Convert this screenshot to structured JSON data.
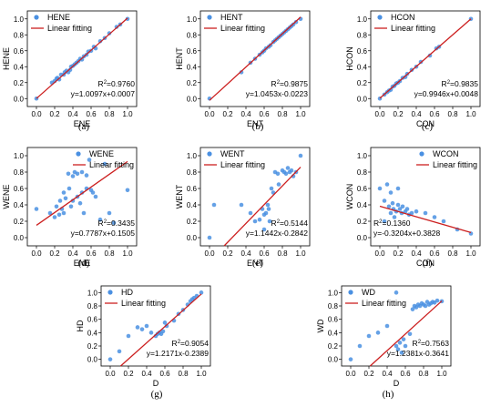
{
  "chart_data": [
    {
      "type": "scatter",
      "panel_label": "(a)",
      "xlabel": "ENE",
      "ylabel": "HENE",
      "xlim": [
        -0.1,
        1.1
      ],
      "ylim": [
        -0.1,
        1.1
      ],
      "xticks": [
        0.0,
        0.2,
        0.4,
        0.6,
        0.8,
        1.0
      ],
      "yticks": [
        0.0,
        0.2,
        0.4,
        0.6,
        0.8,
        1.0
      ],
      "tick_labels_x": [
        "0.0",
        "0.2",
        "0.4",
        "0.6",
        "0.8",
        "1.0"
      ],
      "tick_labels_y": [
        "0.0",
        "0.2",
        "0.4",
        "0.6",
        "0.8",
        "1.0"
      ],
      "legend": [
        "HENE",
        "Linear fitting"
      ],
      "legend_position": "top-left",
      "r2_text": "0.9760",
      "eq_text": "y=1.0097x+0.0007",
      "fit": {
        "slope": 1.0097,
        "intercept": 0.0007
      },
      "points": [
        [
          0,
          0
        ],
        [
          0.17,
          0.2
        ],
        [
          0.2,
          0.22
        ],
        [
          0.22,
          0.25
        ],
        [
          0.23,
          0.26
        ],
        [
          0.25,
          0.24
        ],
        [
          0.27,
          0.3
        ],
        [
          0.3,
          0.3
        ],
        [
          0.31,
          0.33
        ],
        [
          0.33,
          0.35
        ],
        [
          0.35,
          0.33
        ],
        [
          0.37,
          0.36
        ],
        [
          0.38,
          0.4
        ],
        [
          0.4,
          0.41
        ],
        [
          0.42,
          0.43
        ],
        [
          0.44,
          0.45
        ],
        [
          0.46,
          0.47
        ],
        [
          0.48,
          0.5
        ],
        [
          0.5,
          0.49
        ],
        [
          0.52,
          0.53
        ],
        [
          0.55,
          0.55
        ],
        [
          0.57,
          0.59
        ],
        [
          0.6,
          0.6
        ],
        [
          0.63,
          0.65
        ],
        [
          0.65,
          0.63
        ],
        [
          0.7,
          0.72
        ],
        [
          0.75,
          0.76
        ],
        [
          0.8,
          0.82
        ],
        [
          0.88,
          0.9
        ],
        [
          0.92,
          0.93
        ],
        [
          1.0,
          1.0
        ]
      ]
    },
    {
      "type": "scatter",
      "panel_label": "(b)",
      "xlabel": "ENT",
      "ylabel": "HENT",
      "xlim": [
        -0.1,
        1.1
      ],
      "ylim": [
        -0.1,
        1.1
      ],
      "xticks": [
        0.0,
        0.2,
        0.4,
        0.6,
        0.8,
        1.0
      ],
      "yticks": [
        0.0,
        0.2,
        0.4,
        0.6,
        0.8,
        1.0
      ],
      "tick_labels_x": [
        "0.0",
        "0.2",
        "0.4",
        "0.6",
        "0.8",
        "1.0"
      ],
      "tick_labels_y": [
        "0.0",
        "0.2",
        "0.4",
        "0.6",
        "0.8",
        "1.0"
      ],
      "legend": [
        "HENT",
        "Linear fitting"
      ],
      "legend_position": "top-left",
      "r2_text": "0.9875",
      "eq_text": "y=1.0453x-0.0223",
      "fit": {
        "slope": 1.0453,
        "intercept": -0.0223
      },
      "points": [
        [
          0,
          0
        ],
        [
          0.35,
          0.33
        ],
        [
          0.45,
          0.45
        ],
        [
          0.5,
          0.5
        ],
        [
          0.55,
          0.55
        ],
        [
          0.58,
          0.58
        ],
        [
          0.6,
          0.6
        ],
        [
          0.62,
          0.63
        ],
        [
          0.65,
          0.65
        ],
        [
          0.67,
          0.67
        ],
        [
          0.7,
          0.71
        ],
        [
          0.72,
          0.73
        ],
        [
          0.74,
          0.75
        ],
        [
          0.76,
          0.77
        ],
        [
          0.78,
          0.79
        ],
        [
          0.8,
          0.81
        ],
        [
          0.82,
          0.83
        ],
        [
          0.84,
          0.85
        ],
        [
          0.86,
          0.87
        ],
        [
          0.88,
          0.89
        ],
        [
          0.9,
          0.91
        ],
        [
          0.92,
          0.93
        ],
        [
          0.95,
          0.96
        ],
        [
          1.0,
          1.0
        ]
      ]
    },
    {
      "type": "scatter",
      "panel_label": "(c)",
      "xlabel": "CON",
      "ylabel": "HCON",
      "xlim": [
        -0.1,
        1.1
      ],
      "ylim": [
        -0.1,
        1.1
      ],
      "xticks": [
        0.0,
        0.2,
        0.4,
        0.6,
        0.8,
        1.0
      ],
      "yticks": [
        0.0,
        0.2,
        0.4,
        0.6,
        0.8,
        1.0
      ],
      "tick_labels_x": [
        "0.0",
        "0.2",
        "0.4",
        "0.6",
        "0.8",
        "1.0"
      ],
      "tick_labels_y": [
        "0.0",
        "0.2",
        "0.4",
        "0.6",
        "0.8",
        "1.0"
      ],
      "legend": [
        "HCON",
        "Linear fitting"
      ],
      "legend_position": "top-left",
      "r2_text": "0.9835",
      "eq_text": "y=0.9946x+0.0048",
      "fit": {
        "slope": 0.9946,
        "intercept": 0.0048
      },
      "points": [
        [
          0,
          0
        ],
        [
          0.05,
          0.05
        ],
        [
          0.08,
          0.08
        ],
        [
          0.1,
          0.1
        ],
        [
          0.12,
          0.11
        ],
        [
          0.14,
          0.15
        ],
        [
          0.16,
          0.16
        ],
        [
          0.18,
          0.19
        ],
        [
          0.2,
          0.2
        ],
        [
          0.22,
          0.22
        ],
        [
          0.25,
          0.26
        ],
        [
          0.28,
          0.27
        ],
        [
          0.3,
          0.31
        ],
        [
          0.35,
          0.36
        ],
        [
          0.4,
          0.4
        ],
        [
          0.45,
          0.46
        ],
        [
          0.55,
          0.54
        ],
        [
          0.62,
          0.63
        ],
        [
          0.65,
          0.65
        ],
        [
          1.0,
          1.0
        ]
      ]
    },
    {
      "type": "scatter",
      "panel_label": "(d)",
      "xlabel": "ENE",
      "ylabel": "WENE",
      "xlim": [
        -0.1,
        1.1
      ],
      "ylim": [
        -0.1,
        1.1
      ],
      "xticks": [
        0.0,
        0.2,
        0.4,
        0.6,
        0.8,
        1.0
      ],
      "yticks": [
        0.0,
        0.2,
        0.4,
        0.6,
        0.8,
        1.0
      ],
      "tick_labels_x": [
        "0.0",
        "0.2",
        "0.4",
        "0.6",
        "0.8",
        "1.0"
      ],
      "tick_labels_y": [
        "0.0",
        "0.2",
        "0.4",
        "0.6",
        "0.8",
        "1.0"
      ],
      "legend": [
        "WENE",
        "Linear fitting"
      ],
      "legend_position": "top-right",
      "r2_text": "0.3435",
      "eq_text": "y=0.7787x+0.1505",
      "fit": {
        "slope": 0.7787,
        "intercept": 0.1505
      },
      "points": [
        [
          0,
          0.35
        ],
        [
          0.15,
          0.3
        ],
        [
          0.2,
          0.25
        ],
        [
          0.22,
          0.38
        ],
        [
          0.25,
          0.28
        ],
        [
          0.26,
          0.45
        ],
        [
          0.28,
          0.35
        ],
        [
          0.3,
          0.3
        ],
        [
          0.3,
          0.55
        ],
        [
          0.32,
          0.48
        ],
        [
          0.35,
          0.78
        ],
        [
          0.36,
          0.6
        ],
        [
          0.38,
          0.38
        ],
        [
          0.4,
          0.45
        ],
        [
          0.4,
          0.75
        ],
        [
          0.42,
          0.8
        ],
        [
          0.45,
          0.5
        ],
        [
          0.45,
          0.78
        ],
        [
          0.48,
          0.42
        ],
        [
          0.5,
          0.8
        ],
        [
          0.5,
          0.55
        ],
        [
          0.52,
          0.3
        ],
        [
          0.55,
          0.76
        ],
        [
          0.55,
          0.6
        ],
        [
          0.58,
          0.95
        ],
        [
          0.6,
          0.58
        ],
        [
          0.62,
          0.55
        ],
        [
          0.65,
          0.5
        ],
        [
          0.7,
          0.22
        ],
        [
          0.75,
          0.9
        ],
        [
          0.8,
          0.3
        ],
        [
          0.85,
          0.18
        ],
        [
          1.0,
          0.58
        ]
      ]
    },
    {
      "type": "scatter",
      "panel_label": "(e)",
      "xlabel": "ENT",
      "ylabel": "WENT",
      "xlim": [
        -0.1,
        1.1
      ],
      "ylim": [
        -0.1,
        1.1
      ],
      "xticks": [
        0.0,
        0.2,
        0.4,
        0.6,
        0.8,
        1.0
      ],
      "yticks": [
        0.0,
        0.2,
        0.4,
        0.6,
        0.8,
        1.0
      ],
      "tick_labels_x": [
        "0.0",
        "0.2",
        "0.4",
        "0.6",
        "0.8",
        "1.0"
      ],
      "tick_labels_y": [
        "0.0",
        "0.2",
        "0.4",
        "0.6",
        "0.8",
        "1.0"
      ],
      "legend": [
        "WENT",
        "Linear fitting"
      ],
      "legend_position": "top-left",
      "r2_text": "0.5144",
      "eq_text": "y=1.1442x-0.2842",
      "fit": {
        "slope": 1.1442,
        "intercept": -0.2842
      },
      "points": [
        [
          0,
          0
        ],
        [
          0.05,
          0.4
        ],
        [
          0.35,
          0.4
        ],
        [
          0.45,
          0.3
        ],
        [
          0.5,
          0.2
        ],
        [
          0.55,
          0.22
        ],
        [
          0.58,
          0.35
        ],
        [
          0.6,
          0.28
        ],
        [
          0.6,
          0.1
        ],
        [
          0.62,
          0.3
        ],
        [
          0.64,
          0.4
        ],
        [
          0.65,
          0.35
        ],
        [
          0.66,
          0.2
        ],
        [
          0.68,
          0.6
        ],
        [
          0.7,
          0.55
        ],
        [
          0.72,
          0.8
        ],
        [
          0.75,
          0.78
        ],
        [
          0.76,
          0.65
        ],
        [
          0.8,
          0.82
        ],
        [
          0.82,
          0.8
        ],
        [
          0.84,
          0.78
        ],
        [
          0.86,
          0.85
        ],
        [
          0.88,
          0.8
        ],
        [
          0.9,
          0.82
        ],
        [
          0.92,
          0.75
        ],
        [
          0.95,
          0.8
        ],
        [
          1.0,
          1.0
        ]
      ]
    },
    {
      "type": "scatter",
      "panel_label": "(f)",
      "xlabel": "CON",
      "ylabel": "WCON",
      "xlim": [
        -0.1,
        1.1
      ],
      "ylim": [
        -0.1,
        1.1
      ],
      "xticks": [
        0.0,
        0.2,
        0.4,
        0.6,
        0.8,
        1.0
      ],
      "yticks": [
        0.0,
        0.2,
        0.4,
        0.6,
        0.8,
        1.0
      ],
      "tick_labels_x": [
        "0.0",
        "0.2",
        "0.4",
        "0.6",
        "0.8",
        "1.0"
      ],
      "tick_labels_y": [
        "0.0",
        "0.2",
        "0.4",
        "0.6",
        "0.8",
        "1.0"
      ],
      "legend": [
        "WCON",
        "Linear fitting"
      ],
      "legend_position": "top-right",
      "r2_text": "0.1360",
      "eq_text": "y=-0.3204x+0.3828",
      "fit": {
        "slope": -0.3204,
        "intercept": 0.3828
      },
      "points": [
        [
          0,
          0.6
        ],
        [
          0.05,
          0.2
        ],
        [
          0.05,
          0.45
        ],
        [
          0.08,
          0.65
        ],
        [
          0.1,
          0.38
        ],
        [
          0.12,
          0.3
        ],
        [
          0.12,
          0.55
        ],
        [
          0.14,
          0.42
        ],
        [
          0.15,
          0.35
        ],
        [
          0.16,
          0.25
        ],
        [
          0.18,
          0.32
        ],
        [
          0.2,
          0.4
        ],
        [
          0.2,
          0.6
        ],
        [
          0.22,
          0.35
        ],
        [
          0.24,
          0.3
        ],
        [
          0.25,
          0.38
        ],
        [
          0.28,
          0.32
        ],
        [
          0.3,
          0.35
        ],
        [
          0.32,
          0.28
        ],
        [
          0.35,
          0.3
        ],
        [
          0.4,
          0.32
        ],
        [
          0.5,
          0.3
        ],
        [
          0.6,
          0.25
        ],
        [
          0.7,
          0.2
        ],
        [
          0.85,
          0.1
        ],
        [
          1.0,
          0.05
        ]
      ]
    },
    {
      "type": "scatter",
      "panel_label": "(g)",
      "xlabel": "D",
      "ylabel": "HD",
      "xlim": [
        -0.1,
        1.1
      ],
      "ylim": [
        -0.1,
        1.1
      ],
      "xticks": [
        0.0,
        0.2,
        0.4,
        0.6,
        0.8,
        1.0
      ],
      "yticks": [
        0.0,
        0.2,
        0.4,
        0.6,
        0.8,
        1.0
      ],
      "tick_labels_x": [
        "0.0",
        "0.2",
        "0.4",
        "0.6",
        "0.8",
        "1.0"
      ],
      "tick_labels_y": [
        "0.0",
        "0.2",
        "0.4",
        "0.6",
        "0.8",
        "1.0"
      ],
      "legend": [
        "HD",
        "Linear fitting"
      ],
      "legend_position": "top-left",
      "r2_text": "0.9054",
      "eq_text": "y=1.2171x-0.2389",
      "fit": {
        "slope": 1.2171,
        "intercept": -0.2389
      },
      "points": [
        [
          0,
          0
        ],
        [
          0.1,
          0.12
        ],
        [
          0.2,
          0.35
        ],
        [
          0.3,
          0.48
        ],
        [
          0.35,
          0.45
        ],
        [
          0.4,
          0.5
        ],
        [
          0.45,
          0.4
        ],
        [
          0.5,
          0.35
        ],
        [
          0.52,
          0.38
        ],
        [
          0.54,
          0.4
        ],
        [
          0.56,
          0.38
        ],
        [
          0.58,
          0.42
        ],
        [
          0.6,
          0.55
        ],
        [
          0.62,
          0.5
        ],
        [
          0.7,
          0.58
        ],
        [
          0.75,
          0.68
        ],
        [
          0.8,
          0.74
        ],
        [
          0.85,
          0.82
        ],
        [
          0.88,
          0.87
        ],
        [
          0.9,
          0.9
        ],
        [
          0.92,
          0.92
        ],
        [
          0.95,
          0.95
        ],
        [
          1.0,
          1.0
        ]
      ]
    },
    {
      "type": "scatter",
      "panel_label": "(h)",
      "xlabel": "D",
      "ylabel": "WD",
      "xlim": [
        -0.1,
        1.1
      ],
      "ylim": [
        -0.1,
        1.1
      ],
      "xticks": [
        0.0,
        0.2,
        0.4,
        0.6,
        0.8,
        1.0
      ],
      "yticks": [
        0.0,
        0.2,
        0.4,
        0.6,
        0.8,
        1.0
      ],
      "tick_labels_x": [
        "0.0",
        "0.2",
        "0.4",
        "0.6",
        "0.8",
        "1.0"
      ],
      "tick_labels_y": [
        "0.0",
        "0.2",
        "0.4",
        "0.6",
        "0.8",
        "1.0"
      ],
      "legend": [
        "WD",
        "Linear fitting"
      ],
      "legend_position": "top-left",
      "r2_text": "0.7563",
      "eq_text": "y=1.2381x-0.3641",
      "fit": {
        "slope": 1.2381,
        "intercept": -0.3641
      },
      "points": [
        [
          0,
          0
        ],
        [
          0.1,
          0.2
        ],
        [
          0.2,
          0.35
        ],
        [
          0.3,
          0.4
        ],
        [
          0.4,
          0.5
        ],
        [
          0.5,
          0.2
        ],
        [
          0.5,
          1.0
        ],
        [
          0.52,
          0.15
        ],
        [
          0.54,
          0.25
        ],
        [
          0.56,
          0.1
        ],
        [
          0.58,
          0.3
        ],
        [
          0.6,
          0.2
        ],
        [
          0.65,
          0.38
        ],
        [
          0.68,
          0.75
        ],
        [
          0.7,
          0.8
        ],
        [
          0.72,
          0.78
        ],
        [
          0.74,
          0.82
        ],
        [
          0.76,
          0.8
        ],
        [
          0.78,
          0.84
        ],
        [
          0.8,
          0.82
        ],
        [
          0.82,
          0.8
        ],
        [
          0.84,
          0.86
        ],
        [
          0.86,
          0.82
        ],
        [
          0.88,
          0.84
        ],
        [
          0.9,
          0.86
        ],
        [
          0.92,
          0.85
        ],
        [
          0.95,
          0.88
        ],
        [
          1.0,
          0.87
        ]
      ]
    }
  ]
}
